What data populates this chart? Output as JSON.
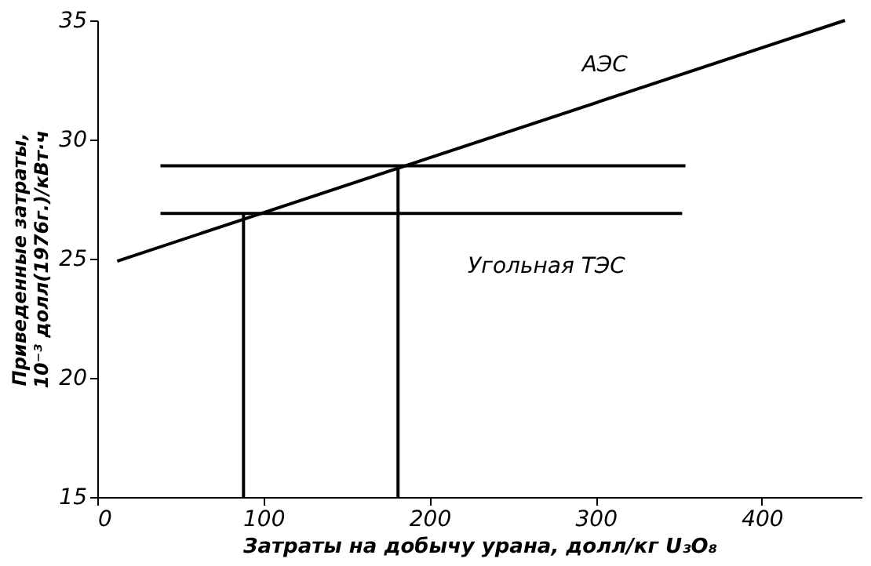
{
  "chart_data": {
    "type": "line",
    "xlabel": "Затраты на добычу урана, долл/кг U₃O₈",
    "ylabel": "Приведенные затраты,\n10⁻³ долл(1976г.)/кВт·ч",
    "xlim": [
      0,
      460
    ],
    "xticks": [
      0,
      100,
      200,
      300,
      400
    ],
    "ylim": [
      15,
      35
    ],
    "yticks": [
      15,
      20,
      25,
      30,
      35
    ],
    "grid": false,
    "marker": "none",
    "line_style": "solid",
    "series": [
      {
        "name": "АЭС",
        "color": "#000000",
        "x": [
          12,
          450
        ],
        "values": [
          24.9,
          35
        ]
      },
      {
        "color": "#000000",
        "x": [
          38,
          354
        ],
        "values": [
          28.9,
          28.9
        ]
      },
      {
        "name": "Угольная ТЭС",
        "color": "#000000",
        "x": [
          38,
          352
        ],
        "values": [
          26.9,
          26.9
        ]
      },
      {
        "color": "#000000",
        "x": [
          88,
          88
        ],
        "values": [
          15,
          26.9
        ]
      },
      {
        "color": "#000000",
        "x": [
          181,
          181
        ],
        "values": [
          15,
          28.9
        ]
      }
    ]
  }
}
